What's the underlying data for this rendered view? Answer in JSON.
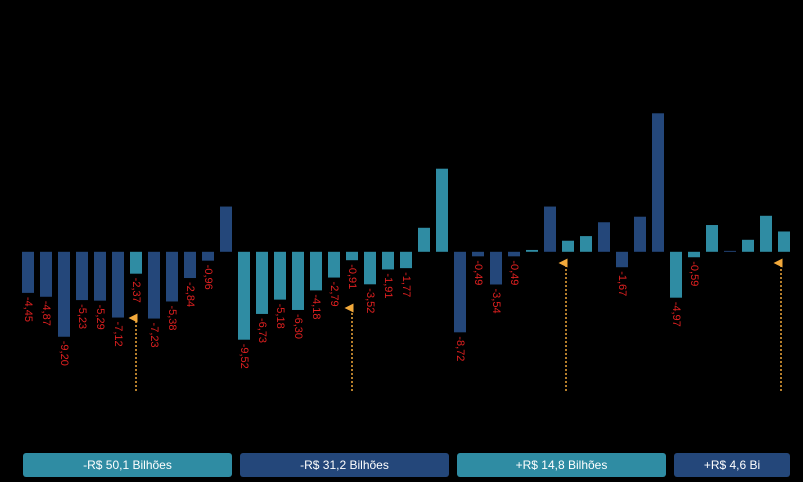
{
  "chart_data": {
    "type": "bar",
    "values": [
      -4.45,
      -4.87,
      -9.2,
      -5.23,
      -5.29,
      -7.12,
      -2.37,
      -7.23,
      -5.38,
      -2.84,
      -0.96,
      4.9,
      -9.52,
      -6.73,
      -5.18,
      -6.3,
      -4.18,
      -2.79,
      -0.91,
      -3.52,
      -1.91,
      -1.77,
      2.6,
      9.0,
      -8.72,
      -0.49,
      -3.54,
      -0.49,
      0.2,
      4.9,
      1.2,
      1.7,
      3.2,
      -1.67,
      3.8,
      15.0,
      -4.97,
      -0.59,
      2.9,
      0.1,
      1.3,
      3.9,
      2.2
    ],
    "value_labels": [
      "-4,45",
      "-4,87",
      "-9,20",
      "-5,23",
      "-5,29",
      "-7,12",
      "-2,37",
      "-7,23",
      "-5,38",
      "-2,84",
      "-0,96",
      null,
      "-9,52",
      "-6,73",
      "-5,18",
      "-6,30",
      "-4,18",
      "-2,79",
      "-0,91",
      "-3,52",
      "-1,91",
      "-1,77",
      null,
      null,
      "-8,72",
      "-0,49",
      "-3,54",
      "-0,49",
      null,
      null,
      null,
      null,
      null,
      "-1,67",
      null,
      null,
      "-4,97",
      "-0,59",
      null,
      null,
      null,
      null,
      null
    ],
    "colors": [
      "#24477a",
      "#24477a",
      "#24477a",
      "#24477a",
      "#24477a",
      "#24477a",
      "#2f8ca3",
      "#24477a",
      "#24477a",
      "#24477a",
      "#24477a",
      "#24477a",
      "#2f8ca3",
      "#2f8ca3",
      "#2f8ca3",
      "#2f8ca3",
      "#2f8ca3",
      "#2f8ca3",
      "#2f8ca3",
      "#2f8ca3",
      "#2f8ca3",
      "#2f8ca3",
      "#2f8ca3",
      "#2f8ca3",
      "#24477a",
      "#24477a",
      "#24477a",
      "#24477a",
      "#2f8ca3",
      "#24477a",
      "#2f8ca3",
      "#2f8ca3",
      "#24477a",
      "#24477a",
      "#24477a",
      "#24477a",
      "#2f8ca3",
      "#2f8ca3",
      "#2f8ca3",
      "#24477a",
      "#2f8ca3",
      "#2f8ca3",
      "#2f8ca3"
    ],
    "ylim": [
      -18,
      27
    ],
    "groups": [
      {
        "label": "-R$ 50,1 Bilhões",
        "color": "#2f8ca3"
      },
      {
        "label": "-R$ 31,2 Bilhões",
        "color": "#24477a"
      },
      {
        "label": "+R$ 14,8 Bilhões",
        "color": "#2f8ca3"
      },
      {
        "label": "+R$ 4,6 Bi",
        "color": "#24477a"
      }
    ]
  }
}
